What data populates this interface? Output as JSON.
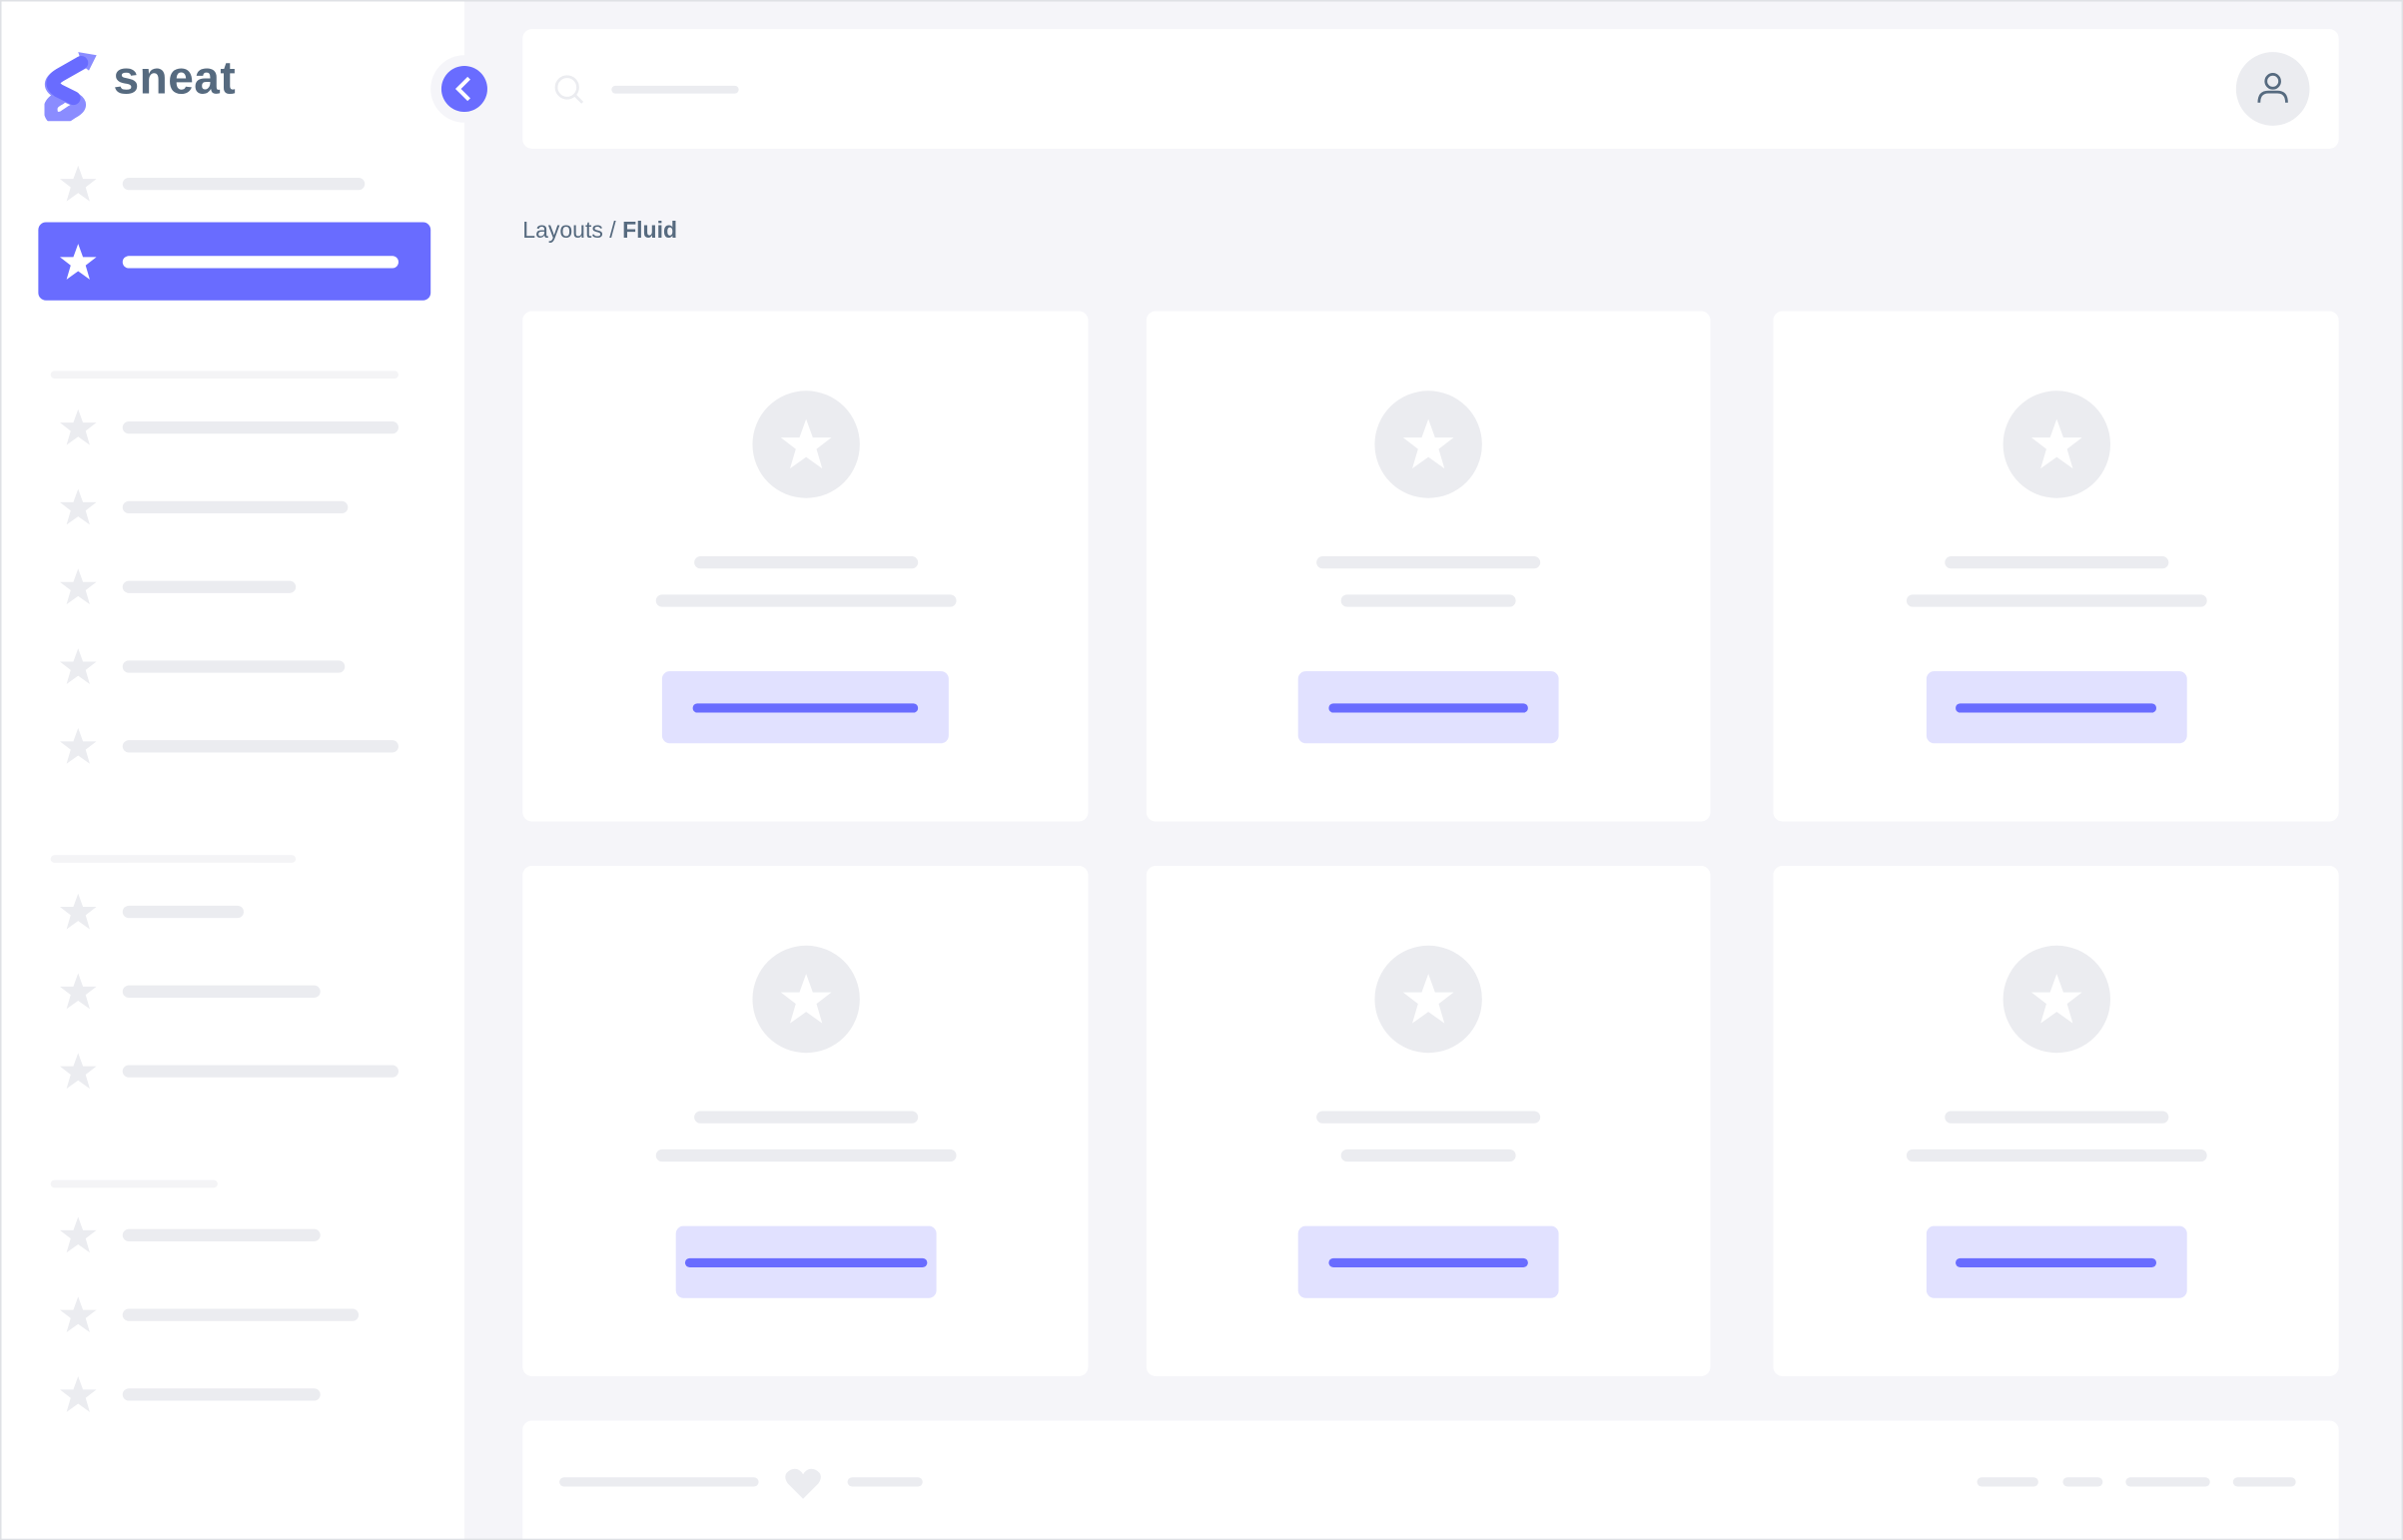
{
  "brand": {
    "name": "sneat",
    "logo_color": "#696cff"
  },
  "breadcrumb": {
    "parent": "Layouts",
    "separator": "/",
    "current": "Fluid"
  },
  "colors": {
    "primary": "#696cff",
    "primary_light": "#e1e1ff",
    "background": "#f5f5f9",
    "skeleton": "#ebecf0",
    "text": "#566a7f"
  },
  "icons": {
    "nav": "star-icon",
    "search": "search-icon",
    "user": "user-icon",
    "collapse": "chevron-left-icon",
    "footer": "heart-icon"
  },
  "sidebar": {
    "active_index": 1,
    "sections": 4
  },
  "cards": {
    "count": 6
  }
}
